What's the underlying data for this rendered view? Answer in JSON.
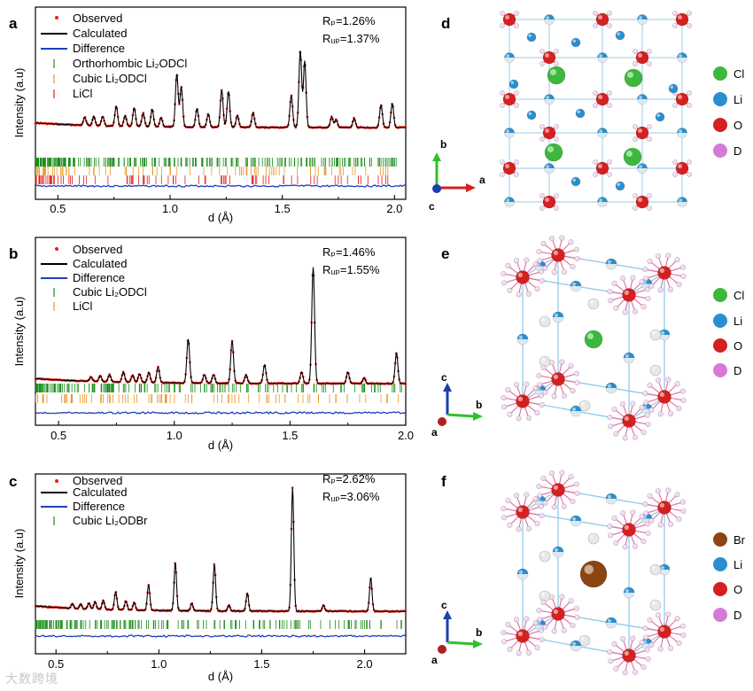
{
  "figure": {
    "watermark": "大数跨境",
    "panels": [
      {
        "letter": "a",
        "legend": {
          "observed": "Observed",
          "calculated": "Calculated",
          "difference": "Difference",
          "phases": [
            "Orthorhombic Li₂ODCl",
            "Cubic Li₂ODCl",
            "LiCl"
          ]
        },
        "rp": "Rₚ=1.26%",
        "rwp": "Rᵤₚ=1.37%",
        "ylabel": "Intensity (a.u)",
        "xlabel": "d (Å)",
        "ticks": [
          "0.5",
          "1.0",
          "1.5",
          "2.0"
        ]
      },
      {
        "letter": "b",
        "legend": {
          "observed": "Observed",
          "calculated": "Calculated",
          "difference": "Difference",
          "phases": [
            "Cubic Li₂ODCl",
            "LiCl"
          ]
        },
        "rp": "Rₚ=1.46%",
        "rwp": "Rᵤₚ=1.55%",
        "ylabel": "Intensity (a.u)",
        "xlabel": "d (Å)",
        "ticks": [
          "0.5",
          "1.0",
          "1.5",
          "2.0"
        ]
      },
      {
        "letter": "c",
        "legend": {
          "observed": "Observed",
          "calculated": "Calculated",
          "difference": "Difference",
          "phases": [
            "Cubic Li₂ODBr"
          ]
        },
        "rp": "Rₚ=2.62%",
        "rwp": "Rᵤₚ=3.06%",
        "ylabel": "Intensity (a.u)",
        "xlabel": "d (Å)",
        "ticks": [
          "0.5",
          "1.0",
          "1.5",
          "2.0"
        ]
      }
    ],
    "structures": [
      {
        "letter": "d",
        "legend": [
          "Cl",
          "Li",
          "O",
          "D"
        ],
        "axes": [
          "b",
          "a",
          "c"
        ]
      },
      {
        "letter": "e",
        "legend": [
          "Cl",
          "Li",
          "O",
          "D"
        ],
        "axes": [
          "c",
          "b",
          "a"
        ]
      },
      {
        "letter": "f",
        "legend": [
          "Br",
          "Li",
          "O",
          "D"
        ],
        "axes": [
          "c",
          "b",
          "a"
        ]
      }
    ],
    "colors": {
      "observed": "#e0201b",
      "calculated": "#000000",
      "difference": "#1f3fbf",
      "phase_green": "#1a8a1a",
      "phase_orange": "#e8962a",
      "phase_red": "#e0201b",
      "Cl": "#3cb83c",
      "Br": "#8b4513",
      "Li": "#2a8fd0",
      "O": "#d42020",
      "D": "#d67ad6"
    }
  },
  "chart_data": [
    {
      "type": "line",
      "title": "a",
      "xlabel": "d (Å)",
      "ylabel": "Intensity (a.u)",
      "xlim": [
        0.4,
        2.05
      ],
      "series": [
        {
          "name": "Calculated",
          "peaks": [
            [
              0.62,
              0.06
            ],
            [
              0.66,
              0.07
            ],
            [
              0.7,
              0.07
            ],
            [
              0.76,
              0.15
            ],
            [
              0.8,
              0.08
            ],
            [
              0.84,
              0.14
            ],
            [
              0.88,
              0.1
            ],
            [
              0.92,
              0.13
            ],
            [
              0.96,
              0.07
            ],
            [
              1.03,
              0.4
            ],
            [
              1.05,
              0.3
            ],
            [
              1.12,
              0.14
            ],
            [
              1.17,
              0.1
            ],
            [
              1.23,
              0.28
            ],
            [
              1.26,
              0.27
            ],
            [
              1.3,
              0.09
            ],
            [
              1.37,
              0.11
            ],
            [
              1.54,
              0.24
            ],
            [
              1.58,
              0.58
            ],
            [
              1.6,
              0.5
            ],
            [
              1.72,
              0.08
            ],
            [
              1.74,
              0.06
            ],
            [
              1.82,
              0.07
            ],
            [
              1.94,
              0.17
            ],
            [
              1.99,
              0.18
            ]
          ]
        }
      ],
      "phase_ticks": [
        "Orthorhombic Li₂ODCl",
        "Cubic Li₂ODCl",
        "LiCl"
      ]
    },
    {
      "type": "line",
      "title": "b",
      "xlabel": "d (Å)",
      "ylabel": "Intensity (a.u)",
      "xlim": [
        0.4,
        2.0
      ],
      "series": [
        {
          "name": "Calculated",
          "peaks": [
            [
              0.64,
              0.03
            ],
            [
              0.68,
              0.04
            ],
            [
              0.72,
              0.05
            ],
            [
              0.78,
              0.07
            ],
            [
              0.82,
              0.05
            ],
            [
              0.85,
              0.06
            ],
            [
              0.89,
              0.07
            ],
            [
              0.93,
              0.11
            ],
            [
              1.06,
              0.31
            ],
            [
              1.13,
              0.06
            ],
            [
              1.17,
              0.06
            ],
            [
              1.25,
              0.3
            ],
            [
              1.31,
              0.06
            ],
            [
              1.39,
              0.13
            ],
            [
              1.55,
              0.08
            ],
            [
              1.6,
              0.82
            ],
            [
              1.75,
              0.08
            ],
            [
              1.82,
              0.04
            ],
            [
              1.96,
              0.22
            ]
          ]
        }
      ],
      "phase_ticks": [
        "Cubic Li₂ODCl",
        "LiCl"
      ]
    },
    {
      "type": "line",
      "title": "c",
      "xlabel": "d (Å)",
      "ylabel": "Intensity (a.u)",
      "xlim": [
        0.4,
        2.2
      ],
      "series": [
        {
          "name": "Calculated",
          "peaks": [
            [
              0.58,
              0.03
            ],
            [
              0.62,
              0.03
            ],
            [
              0.66,
              0.04
            ],
            [
              0.69,
              0.05
            ],
            [
              0.73,
              0.06
            ],
            [
              0.79,
              0.12
            ],
            [
              0.84,
              0.06
            ],
            [
              0.88,
              0.05
            ],
            [
              0.95,
              0.17
            ],
            [
              1.08,
              0.32
            ],
            [
              1.16,
              0.05
            ],
            [
              1.27,
              0.31
            ],
            [
              1.34,
              0.04
            ],
            [
              1.43,
              0.12
            ],
            [
              1.65,
              0.82
            ],
            [
              1.8,
              0.04
            ],
            [
              2.03,
              0.22
            ]
          ]
        }
      ],
      "phase_ticks": [
        "Cubic Li₂ODBr"
      ]
    }
  ]
}
